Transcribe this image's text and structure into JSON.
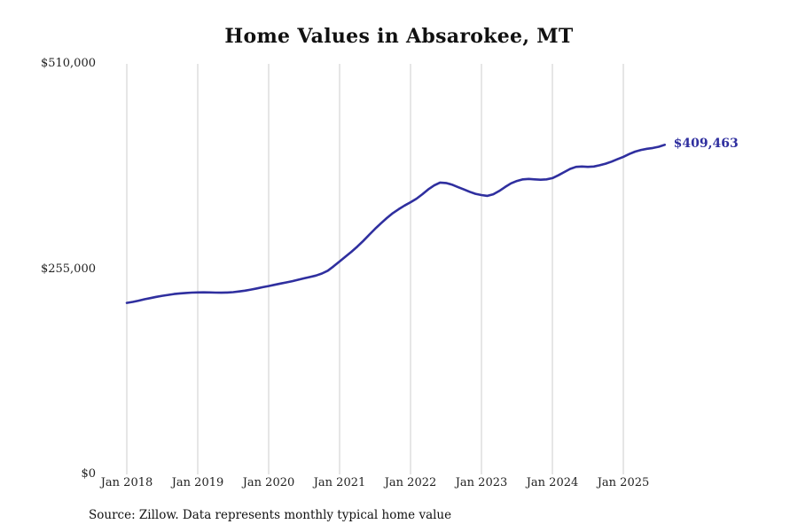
{
  "title": "Home Values in Absarokee, MT",
  "source_note": "Source: Zillow. Data represents monthly typical home value",
  "chart_data": {
    "type": "line",
    "title": "Home Values in Absarokee, MT",
    "series_name": "Monthly typical home value",
    "line_color": "#2f2f9f",
    "label_color": "#2f2f9f",
    "grid": "vertical-only",
    "grid_color": "#cccccc",
    "legend_position": "none",
    "ylim": [
      0,
      510000
    ],
    "end_label": "$409,463",
    "end_value": 409463,
    "y_ticks": [
      {
        "value": 0,
        "label": "$0"
      },
      {
        "value": 255000,
        "label": "$255,000"
      },
      {
        "value": 510000,
        "label": "$510,000"
      }
    ],
    "x_ticks": [
      {
        "month_index": 0,
        "label": "Jan 2018"
      },
      {
        "month_index": 12,
        "label": "Jan 2019"
      },
      {
        "month_index": 24,
        "label": "Jan 2020"
      },
      {
        "month_index": 36,
        "label": "Jan 2021"
      },
      {
        "month_index": 48,
        "label": "Jan 2022"
      },
      {
        "month_index": 60,
        "label": "Jan 2023"
      },
      {
        "month_index": 72,
        "label": "Jan 2024"
      },
      {
        "month_index": 84,
        "label": "Jan 2025"
      }
    ],
    "x": [
      "Jan 2018",
      "Feb 2018",
      "Mar 2018",
      "Apr 2018",
      "May 2018",
      "Jun 2018",
      "Jul 2018",
      "Aug 2018",
      "Sep 2018",
      "Oct 2018",
      "Nov 2018",
      "Dec 2018",
      "Jan 2019",
      "Feb 2019",
      "Mar 2019",
      "Apr 2019",
      "May 2019",
      "Jun 2019",
      "Jul 2019",
      "Aug 2019",
      "Sep 2019",
      "Oct 2019",
      "Nov 2019",
      "Dec 2019",
      "Jan 2020",
      "Feb 2020",
      "Mar 2020",
      "Apr 2020",
      "May 2020",
      "Jun 2020",
      "Jul 2020",
      "Aug 2020",
      "Sep 2020",
      "Oct 2020",
      "Nov 2020",
      "Dec 2020",
      "Jan 2021",
      "Feb 2021",
      "Mar 2021",
      "Apr 2021",
      "May 2021",
      "Jun 2021",
      "Jul 2021",
      "Aug 2021",
      "Sep 2021",
      "Oct 2021",
      "Nov 2021",
      "Dec 2021",
      "Jan 2022",
      "Feb 2022",
      "Mar 2022",
      "Apr 2022",
      "May 2022",
      "Jun 2022",
      "Jul 2022",
      "Aug 2022",
      "Sep 2022",
      "Oct 2022",
      "Nov 2022",
      "Dec 2022",
      "Jan 2023",
      "Feb 2023",
      "Mar 2023",
      "Apr 2023",
      "May 2023",
      "Jun 2023",
      "Jul 2023",
      "Aug 2023",
      "Sep 2023",
      "Oct 2023",
      "Nov 2023",
      "Dec 2023",
      "Jan 2024",
      "Feb 2024",
      "Mar 2024",
      "Apr 2024",
      "May 2024",
      "Jun 2024",
      "Jul 2024",
      "Aug 2024",
      "Sep 2024",
      "Oct 2024",
      "Nov 2024",
      "Dec 2024",
      "Jan 2025",
      "Feb 2025",
      "Mar 2025",
      "Apr 2025",
      "May 2025",
      "Jun 2025",
      "Jul 2025",
      "Aug 2025"
    ],
    "values": [
      213000,
      214200,
      215800,
      217500,
      219000,
      220500,
      221800,
      223000,
      224000,
      224800,
      225400,
      225800,
      226000,
      226100,
      226000,
      225800,
      225700,
      225900,
      226400,
      227200,
      228200,
      229500,
      231000,
      232500,
      234000,
      235500,
      237000,
      238500,
      240000,
      241800,
      243500,
      245200,
      247000,
      249500,
      253000,
      258500,
      264500,
      270500,
      276500,
      283000,
      290000,
      297500,
      305000,
      312000,
      318500,
      324500,
      329500,
      334000,
      338000,
      342500,
      348000,
      354000,
      359000,
      362500,
      362000,
      360000,
      357000,
      354000,
      351000,
      348500,
      347000,
      346000,
      348000,
      352000,
      357000,
      361500,
      364500,
      366500,
      367000,
      366500,
      366000,
      366500,
      368000,
      371500,
      375500,
      379500,
      382000,
      382500,
      382000,
      382500,
      384000,
      386000,
      388500,
      391500,
      394500,
      398000,
      401000,
      403000,
      404500,
      405500,
      407000,
      409463
    ]
  }
}
